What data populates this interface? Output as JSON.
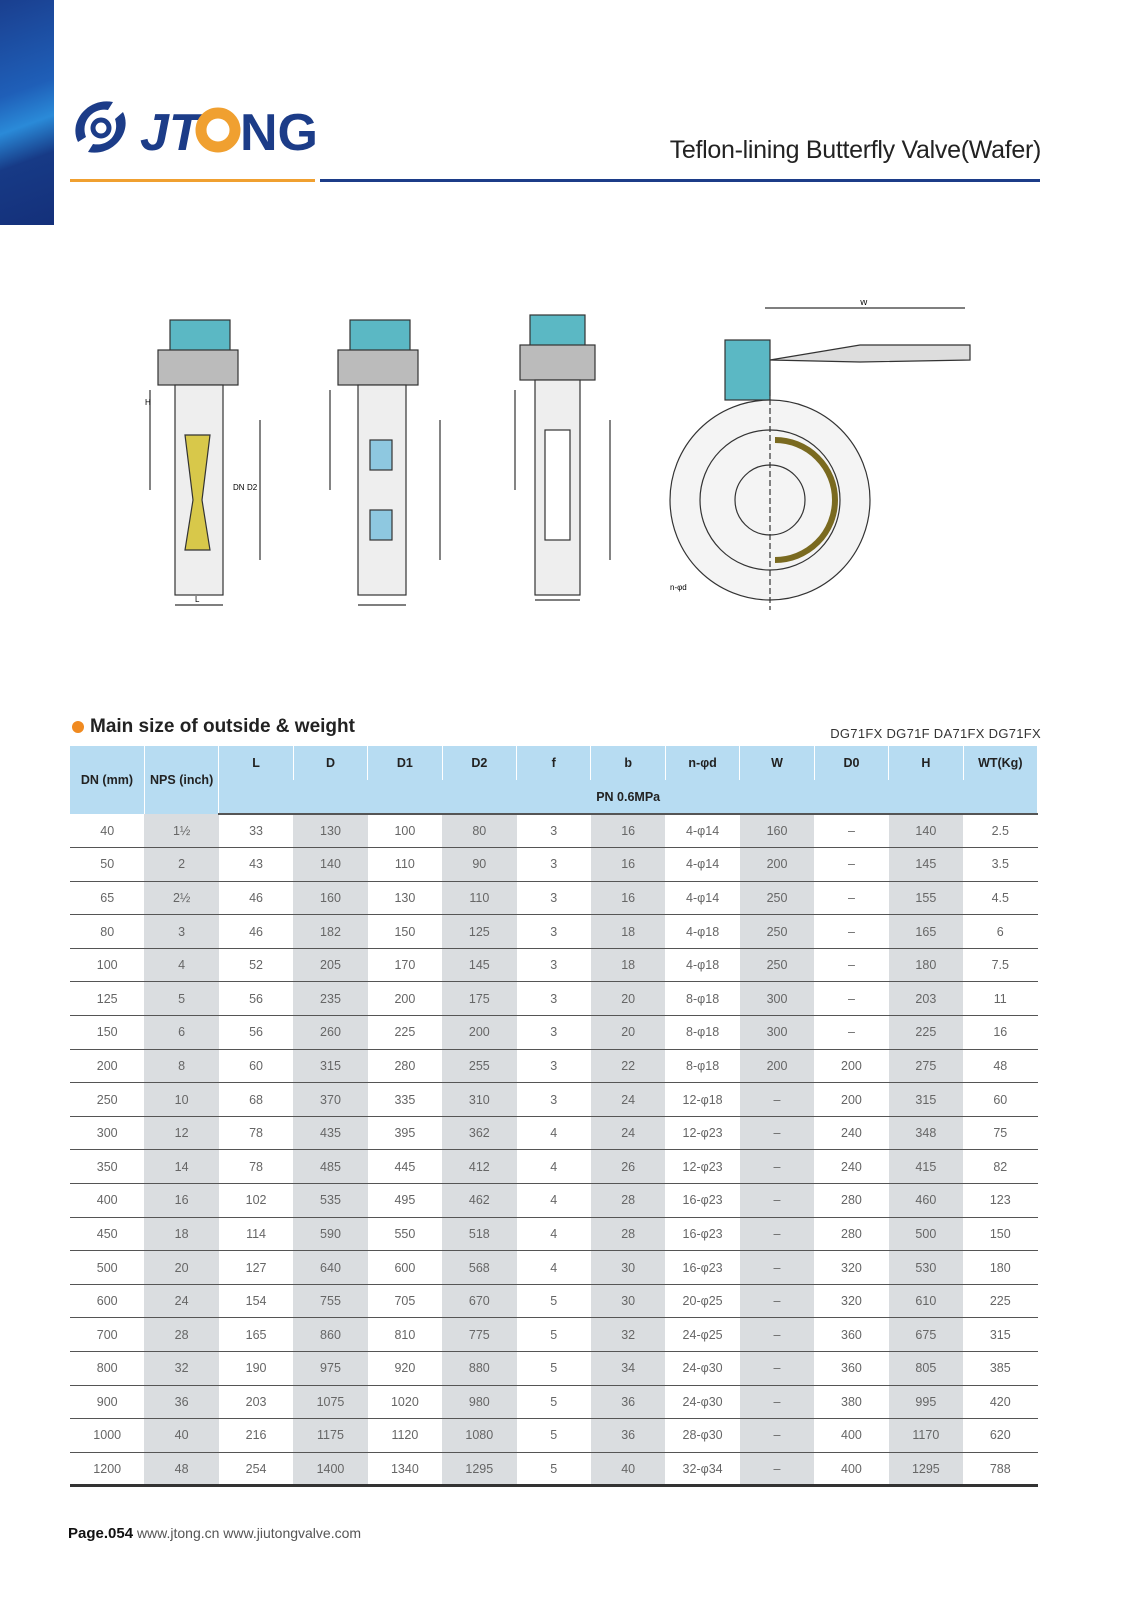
{
  "brand": {
    "name": "JTONG",
    "colors": {
      "blue": "#1c3c88",
      "orange": "#f0a030"
    }
  },
  "header": {
    "title": "Teflon-lining Butterfly Valve(Wafer)"
  },
  "drawing_labels": {
    "H": "H",
    "DN": "DN",
    "D2": "D2",
    "L": "L",
    "W": "W",
    "n_phi_d": "n-φd"
  },
  "section": {
    "title": "Main size of outside & weight",
    "models": "DG71FX DG71F DA71FX DG71FX"
  },
  "table": {
    "columns": [
      "DN (mm)",
      "NPS (inch)",
      "L",
      "D",
      "D1",
      "D2",
      "f",
      "b",
      "n-φd",
      "W",
      "D0",
      "H",
      "WT(Kg)"
    ],
    "pressure": "PN 0.6MPa",
    "rows": [
      [
        "40",
        "1½",
        "33",
        "130",
        "100",
        "80",
        "3",
        "16",
        "4-φ14",
        "160",
        "–",
        "140",
        "2.5"
      ],
      [
        "50",
        "2",
        "43",
        "140",
        "110",
        "90",
        "3",
        "16",
        "4-φ14",
        "200",
        "–",
        "145",
        "3.5"
      ],
      [
        "65",
        "2½",
        "46",
        "160",
        "130",
        "110",
        "3",
        "16",
        "4-φ14",
        "250",
        "–",
        "155",
        "4.5"
      ],
      [
        "80",
        "3",
        "46",
        "182",
        "150",
        "125",
        "3",
        "18",
        "4-φ18",
        "250",
        "–",
        "165",
        "6"
      ],
      [
        "100",
        "4",
        "52",
        "205",
        "170",
        "145",
        "3",
        "18",
        "4-φ18",
        "250",
        "–",
        "180",
        "7.5"
      ],
      [
        "125",
        "5",
        "56",
        "235",
        "200",
        "175",
        "3",
        "20",
        "8-φ18",
        "300",
        "–",
        "203",
        "11"
      ],
      [
        "150",
        "6",
        "56",
        "260",
        "225",
        "200",
        "3",
        "20",
        "8-φ18",
        "300",
        "–",
        "225",
        "16"
      ],
      [
        "200",
        "8",
        "60",
        "315",
        "280",
        "255",
        "3",
        "22",
        "8-φ18",
        "200",
        "200",
        "275",
        "48"
      ],
      [
        "250",
        "10",
        "68",
        "370",
        "335",
        "310",
        "3",
        "24",
        "12-φ18",
        "–",
        "200",
        "315",
        "60"
      ],
      [
        "300",
        "12",
        "78",
        "435",
        "395",
        "362",
        "4",
        "24",
        "12-φ23",
        "–",
        "240",
        "348",
        "75"
      ],
      [
        "350",
        "14",
        "78",
        "485",
        "445",
        "412",
        "4",
        "26",
        "12-φ23",
        "–",
        "240",
        "415",
        "82"
      ],
      [
        "400",
        "16",
        "102",
        "535",
        "495",
        "462",
        "4",
        "28",
        "16-φ23",
        "–",
        "280",
        "460",
        "123"
      ],
      [
        "450",
        "18",
        "114",
        "590",
        "550",
        "518",
        "4",
        "28",
        "16-φ23",
        "–",
        "280",
        "500",
        "150"
      ],
      [
        "500",
        "20",
        "127",
        "640",
        "600",
        "568",
        "4",
        "30",
        "16-φ23",
        "–",
        "320",
        "530",
        "180"
      ],
      [
        "600",
        "24",
        "154",
        "755",
        "705",
        "670",
        "5",
        "30",
        "20-φ25",
        "–",
        "320",
        "610",
        "225"
      ],
      [
        "700",
        "28",
        "165",
        "860",
        "810",
        "775",
        "5",
        "32",
        "24-φ25",
        "–",
        "360",
        "675",
        "315"
      ],
      [
        "800",
        "32",
        "190",
        "975",
        "920",
        "880",
        "5",
        "34",
        "24-φ30",
        "–",
        "360",
        "805",
        "385"
      ],
      [
        "900",
        "36",
        "203",
        "1075",
        "1020",
        "980",
        "5",
        "36",
        "24-φ30",
        "–",
        "380",
        "995",
        "420"
      ],
      [
        "1000",
        "40",
        "216",
        "1175",
        "1120",
        "1080",
        "5",
        "36",
        "28-φ30",
        "–",
        "400",
        "1170",
        "620"
      ],
      [
        "1200",
        "48",
        "254",
        "1400",
        "1340",
        "1295",
        "5",
        "40",
        "32-φ34",
        "–",
        "400",
        "1295",
        "788"
      ]
    ]
  },
  "footer": {
    "page": "Page.054",
    "urls": "www.jtong.cn  www.jiutongvalve.com"
  }
}
